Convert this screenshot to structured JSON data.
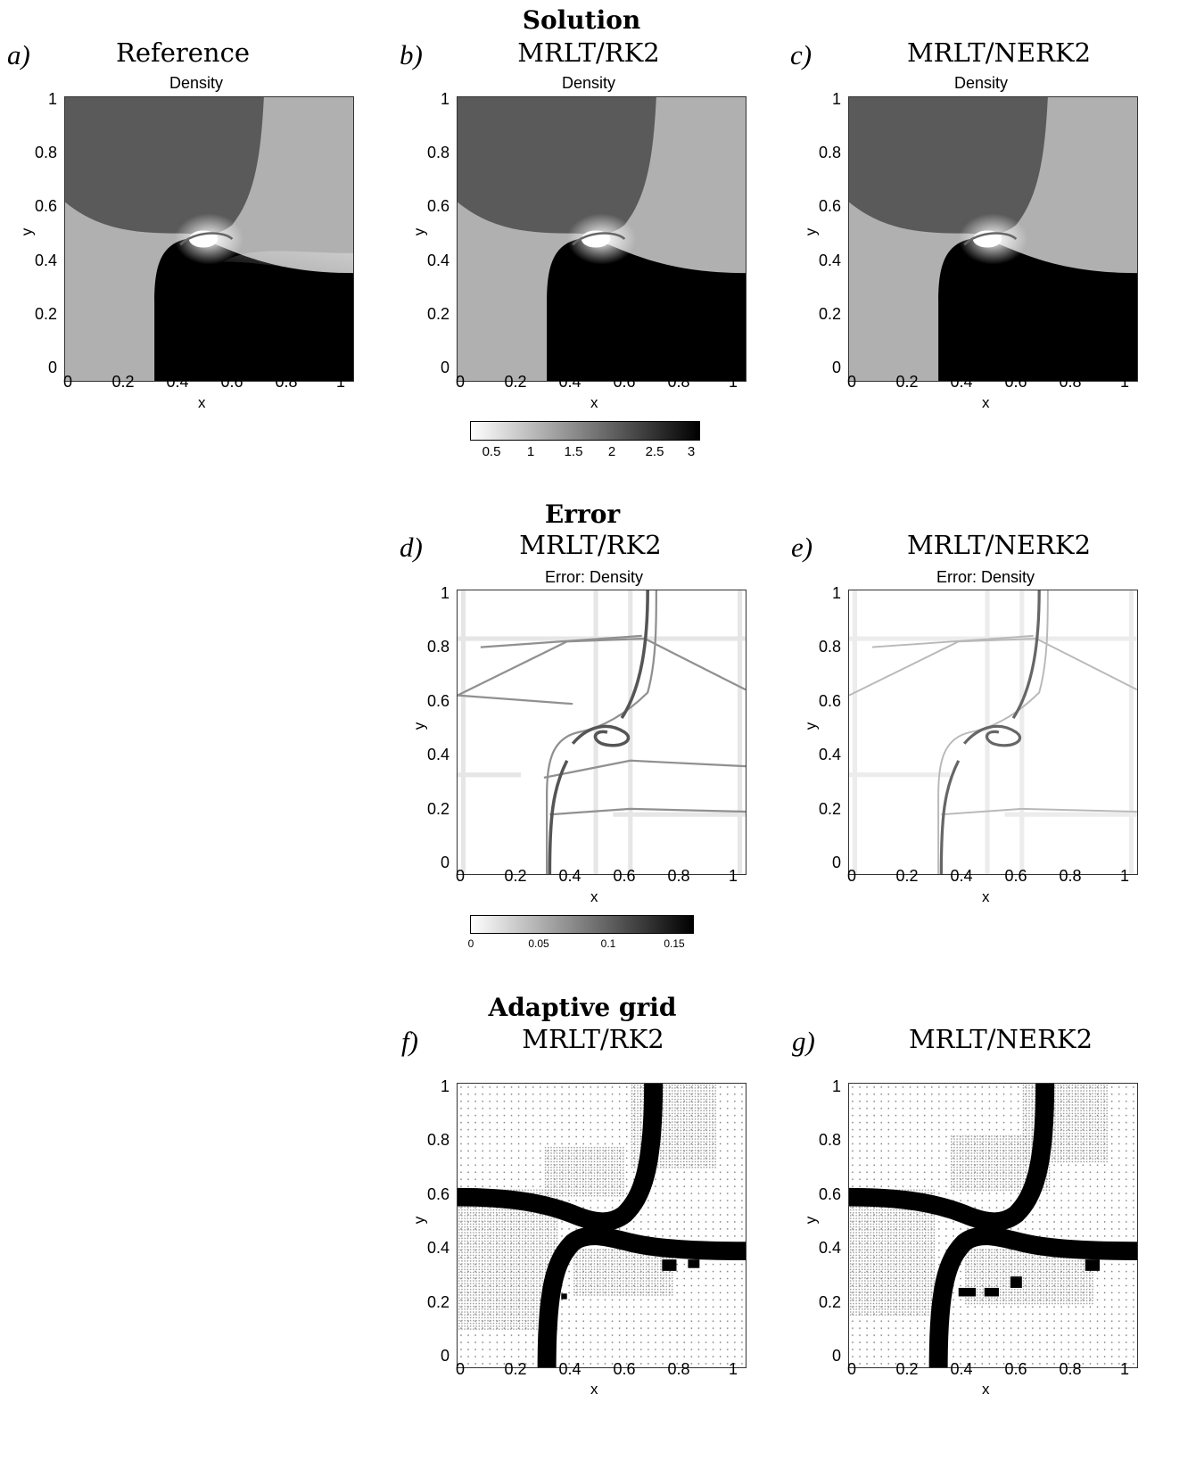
{
  "sections": {
    "solution": "Solution",
    "error": "Error",
    "grid": "Adaptive grid"
  },
  "panels": {
    "a": {
      "letter": "a)",
      "method": "Reference",
      "title": "Density"
    },
    "b": {
      "letter": "b)",
      "method": "MRLT/RK2",
      "title": "Density"
    },
    "c": {
      "letter": "c)",
      "method": "MRLT/NERK2",
      "title": "Density"
    },
    "d": {
      "letter": "d)",
      "method": "MRLT/RK2",
      "title": "Error: Density"
    },
    "e": {
      "letter": "e)",
      "method": "MRLT/NERK2",
      "title": "Error: Density"
    },
    "f": {
      "letter": "f)",
      "method": "MRLT/RK2",
      "title": ""
    },
    "g": {
      "letter": "g)",
      "method": "MRLT/NERK2",
      "title": ""
    }
  },
  "axes": {
    "xlabel": "x",
    "ylabel": "y",
    "xticks": [
      "0",
      "0.2",
      "0.4",
      "0.6",
      "0.8",
      "1"
    ],
    "yticks": [
      "0",
      "0.2",
      "0.4",
      "0.6",
      "0.8",
      "1"
    ]
  },
  "colorbars": {
    "density": {
      "ticks": [
        "0.5",
        "1",
        "1.5",
        "2",
        "2.5",
        "3"
      ],
      "range": [
        0.3,
        3.1
      ]
    },
    "error": {
      "ticks": [
        "0",
        "0.05",
        "0.1",
        "0.15"
      ],
      "range": [
        0,
        0.16
      ]
    }
  },
  "colors": {
    "low": "#ffffff",
    "high": "#000000",
    "mid_gray": "#b2b2b2",
    "dark_gray": "#5c5c5c"
  }
}
